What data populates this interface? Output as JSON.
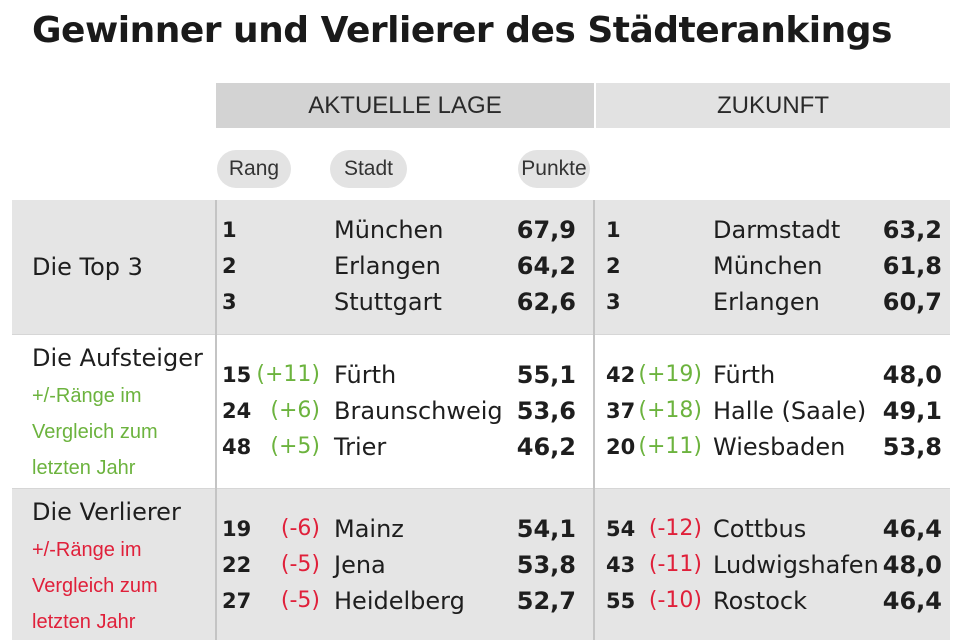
{
  "title": "Gewinner und Verlierer des Städterankings",
  "headers": {
    "aktuell": "AKTUELLE LAGE",
    "zukunft": "ZUKUNFT",
    "rang": "Rang",
    "stadt": "Stadt",
    "punkte": "Punkte"
  },
  "sections": {
    "top3": {
      "label": "Die Top 3",
      "aktuell": [
        {
          "rank": "1",
          "change": "",
          "city": "München",
          "points": "67,9"
        },
        {
          "rank": "2",
          "change": "",
          "city": "Erlangen",
          "points": "64,2"
        },
        {
          "rank": "3",
          "change": "",
          "city": "Stuttgart",
          "points": "62,6"
        }
      ],
      "zukunft": [
        {
          "rank": "1",
          "change": "",
          "city": "Darmstadt",
          "points": "63,2"
        },
        {
          "rank": "2",
          "change": "",
          "city": "München",
          "points": "61,8"
        },
        {
          "rank": "3",
          "change": "",
          "city": "Erlangen",
          "points": "60,7"
        }
      ]
    },
    "aufsteiger": {
      "label": "Die Aufsteiger",
      "note": "+/-Ränge im Vergleich zum letzten Jahr",
      "note_color": "#6cb33e",
      "aktuell": [
        {
          "rank": "15",
          "change": "(+11)",
          "city": "Fürth",
          "points": "55,1"
        },
        {
          "rank": "24",
          "change": "(+6)",
          "city": "Braunschweig",
          "points": "53,6"
        },
        {
          "rank": "48",
          "change": "(+5)",
          "city": "Trier",
          "points": "46,2"
        }
      ],
      "zukunft": [
        {
          "rank": "42",
          "change": "(+19)",
          "city": "Fürth",
          "points": "48,0"
        },
        {
          "rank": "37",
          "change": "(+18)",
          "city": "Halle (Saale)",
          "points": "49,1"
        },
        {
          "rank": "20",
          "change": "(+11)",
          "city": "Wiesbaden",
          "points": "53,8"
        }
      ]
    },
    "verlierer": {
      "label": "Die Verlierer",
      "note": "+/-Ränge im Vergleich zum letzten Jahr",
      "note_color": "#e0203a",
      "aktuell": [
        {
          "rank": "19",
          "change": "(-6)",
          "city": "Mainz",
          "points": "54,1"
        },
        {
          "rank": "22",
          "change": "(-5)",
          "city": "Jena",
          "points": "53,8"
        },
        {
          "rank": "27",
          "change": "(-5)",
          "city": "Heidelberg",
          "points": "52,7"
        }
      ],
      "zukunft": [
        {
          "rank": "54",
          "change": "(-12)",
          "city": "Cottbus",
          "points": "46,4"
        },
        {
          "rank": "43",
          "change": "(-11)",
          "city": "Ludwigshafen",
          "points": "48,0"
        },
        {
          "rank": "55",
          "change": "(-10)",
          "city": "Rostock",
          "points": "46,4"
        }
      ]
    }
  }
}
